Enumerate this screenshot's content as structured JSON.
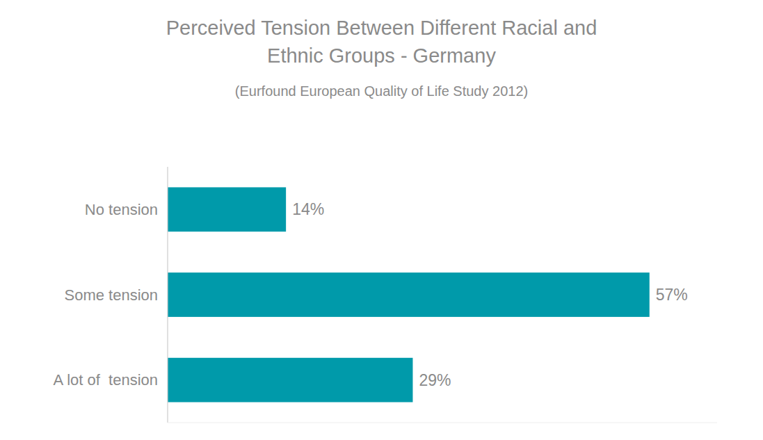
{
  "chart_data": {
    "type": "bar",
    "orientation": "horizontal",
    "title": "Perceived Tension Between Different Racial and\nEthnic Groups - Germany",
    "subtitle": "(Eurfound European Quality of Life Study 2012)",
    "categories": [
      "No tension",
      "Some tension",
      "A lot of  tension"
    ],
    "values": [
      14,
      57,
      29
    ],
    "value_labels": [
      "14%",
      "57%",
      "29%"
    ],
    "data_labels": true,
    "color": "#009aaa",
    "xlim": [
      0,
      65
    ],
    "tick_labels": "y",
    "grid": false
  }
}
